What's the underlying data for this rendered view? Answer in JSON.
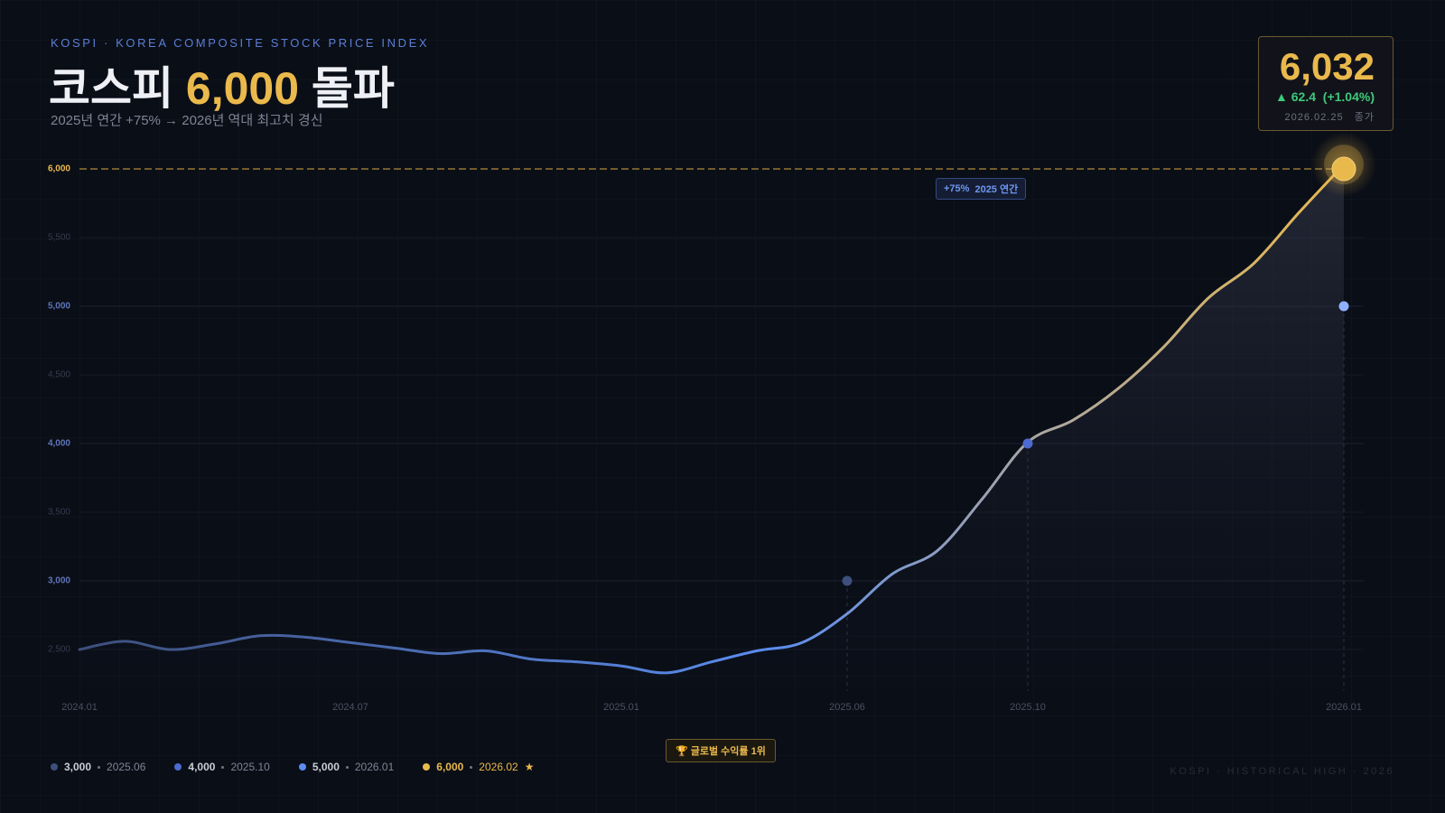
{
  "header": {
    "eyebrow": "KOSPI · KOREA COMPOSITE STOCK PRICE INDEX",
    "title_pre": "코스피 ",
    "title_hl": "6,000",
    "title_post": " 돌파",
    "subtitle": "2025년 연간 +75% → 2026년 역대 최고치 경신"
  },
  "price_box": {
    "price": "6,032",
    "change": "▲ 62.4",
    "change_pct": "(+1.04%)",
    "date": "2026.02.25",
    "note": "종가"
  },
  "annotation": {
    "pct": "+75%",
    "label": "2025 연간"
  },
  "badge": "🏆 글로벌 수익률 1위",
  "footer": "KOSPI · HISTORICAL HIGH · 2026",
  "chart_data": {
    "type": "line",
    "categories": [
      "2024.01",
      null,
      null,
      null,
      null,
      null,
      "2024.07",
      null,
      null,
      null,
      null,
      null,
      "2025.01",
      null,
      null,
      null,
      null,
      "2025.06",
      null,
      null,
      null,
      "2025.10",
      null,
      null,
      null,
      null,
      null,
      null,
      "2026.01"
    ],
    "series": [
      {
        "name": "KOSPI",
        "colors": [
          "#3d4f7c",
          "#5b8def",
          "#a8a6a6",
          "#eab94c"
        ],
        "values": [
          2500,
          2560,
          2500,
          2540,
          2600,
          2590,
          2550,
          2510,
          2470,
          2490,
          2430,
          2410,
          2380,
          2330,
          2410,
          2490,
          2550,
          2760,
          3050,
          3220,
          3600,
          4010,
          4170,
          4400,
          4700,
          5060,
          5310,
          5680,
          6032
        ]
      }
    ],
    "ylim": [
      2200,
      6300
    ],
    "yticks": [
      {
        "value": 2500,
        "label": "2,500"
      },
      {
        "value": 3000,
        "label": "3,000"
      },
      {
        "value": 3500,
        "label": "3,500"
      },
      {
        "value": 4000,
        "label": "4,000"
      },
      {
        "value": 4500,
        "label": "4,500"
      },
      {
        "value": 5000,
        "label": "5,000"
      },
      {
        "value": 5500,
        "label": "5,500"
      },
      {
        "value": 6000,
        "label": "6,000"
      }
    ],
    "grid": true,
    "ref_line": 6000,
    "milestones": [
      {
        "value": 3000,
        "label": "3,000",
        "date": "2025.06",
        "color": "#3d4f7c"
      },
      {
        "value": 4000,
        "label": "4,000",
        "date": "2025.10",
        "color": "#4d6ad0"
      },
      {
        "value": 5000,
        "label": "5,000",
        "date": "2026.01",
        "color": "#5b8def"
      },
      {
        "value": 6000,
        "label": "6,000",
        "date": "2026.02",
        "star": "★",
        "color": "#eab94c"
      }
    ]
  }
}
